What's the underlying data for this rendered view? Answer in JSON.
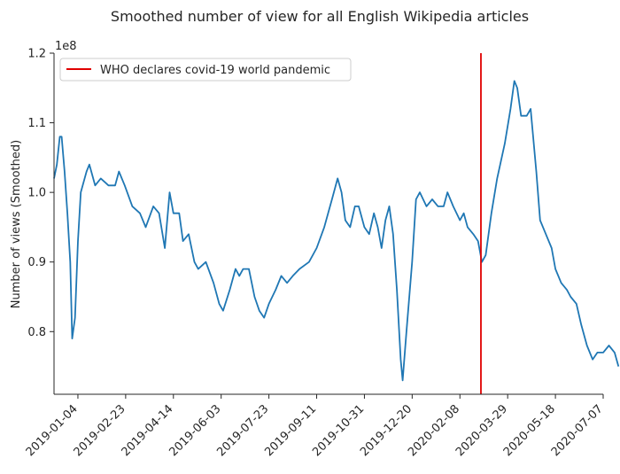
{
  "chart_data": {
    "type": "line",
    "title": "Smoothed number of view for all English Wikipedia articles",
    "xlabel": "",
    "ylabel": "Number of views (Smoothed)",
    "y_offset_label": "1e8",
    "y_ticks": [
      0.8,
      0.9,
      1.0,
      1.1,
      1.2
    ],
    "ylim": [
      0.71,
      1.2
    ],
    "x_ticks": [
      "2019-01-04",
      "2019-02-23",
      "2019-04-14",
      "2019-06-03",
      "2019-07-23",
      "2019-09-11",
      "2019-10-31",
      "2019-12-20",
      "2020-02-08",
      "2020-03-29",
      "2020-05-18",
      "2020-07-07"
    ],
    "xlim": [
      "2018-12-10",
      "2020-07-07"
    ],
    "grid": false,
    "legend_position": "top-left",
    "series": [
      {
        "name": "",
        "color": "#1f77b4",
        "points": [
          [
            "2018-12-10",
            1.02
          ],
          [
            "2018-12-13",
            1.04
          ],
          [
            "2018-12-16",
            1.08
          ],
          [
            "2018-12-18",
            1.08
          ],
          [
            "2018-12-21",
            1.03
          ],
          [
            "2018-12-24",
            0.97
          ],
          [
            "2018-12-27",
            0.9
          ],
          [
            "2018-12-29",
            0.79
          ],
          [
            "2019-01-01",
            0.82
          ],
          [
            "2019-01-04",
            0.93
          ],
          [
            "2019-01-07",
            1.0
          ],
          [
            "2019-01-13",
            1.03
          ],
          [
            "2019-01-16",
            1.04
          ],
          [
            "2019-01-22",
            1.01
          ],
          [
            "2019-01-28",
            1.02
          ],
          [
            "2019-02-05",
            1.01
          ],
          [
            "2019-02-12",
            1.01
          ],
          [
            "2019-02-16",
            1.03
          ],
          [
            "2019-02-22",
            1.01
          ],
          [
            "2019-03-02",
            0.98
          ],
          [
            "2019-03-10",
            0.97
          ],
          [
            "2019-03-16",
            0.95
          ],
          [
            "2019-03-24",
            0.98
          ],
          [
            "2019-03-30",
            0.97
          ],
          [
            "2019-04-05",
            0.92
          ],
          [
            "2019-04-10",
            1.0
          ],
          [
            "2019-04-14",
            0.97
          ],
          [
            "2019-04-20",
            0.97
          ],
          [
            "2019-04-24",
            0.93
          ],
          [
            "2019-04-30",
            0.94
          ],
          [
            "2019-05-06",
            0.9
          ],
          [
            "2019-05-10",
            0.89
          ],
          [
            "2019-05-18",
            0.9
          ],
          [
            "2019-05-26",
            0.87
          ],
          [
            "2019-06-01",
            0.84
          ],
          [
            "2019-06-05",
            0.83
          ],
          [
            "2019-06-12",
            0.86
          ],
          [
            "2019-06-18",
            0.89
          ],
          [
            "2019-06-22",
            0.88
          ],
          [
            "2019-06-26",
            0.89
          ],
          [
            "2019-07-02",
            0.89
          ],
          [
            "2019-07-08",
            0.85
          ],
          [
            "2019-07-13",
            0.83
          ],
          [
            "2019-07-18",
            0.82
          ],
          [
            "2019-07-23",
            0.84
          ],
          [
            "2019-07-30",
            0.86
          ],
          [
            "2019-08-05",
            0.88
          ],
          [
            "2019-08-11",
            0.87
          ],
          [
            "2019-08-17",
            0.88
          ],
          [
            "2019-08-24",
            0.89
          ],
          [
            "2019-09-03",
            0.9
          ],
          [
            "2019-09-11",
            0.92
          ],
          [
            "2019-09-19",
            0.95
          ],
          [
            "2019-09-27",
            0.99
          ],
          [
            "2019-10-03",
            1.02
          ],
          [
            "2019-10-07",
            1.0
          ],
          [
            "2019-10-11",
            0.96
          ],
          [
            "2019-10-16",
            0.95
          ],
          [
            "2019-10-21",
            0.98
          ],
          [
            "2019-10-25",
            0.98
          ],
          [
            "2019-10-31",
            0.95
          ],
          [
            "2019-11-05",
            0.94
          ],
          [
            "2019-11-10",
            0.97
          ],
          [
            "2019-11-14",
            0.95
          ],
          [
            "2019-11-18",
            0.92
          ],
          [
            "2019-11-22",
            0.96
          ],
          [
            "2019-11-26",
            0.98
          ],
          [
            "2019-11-30",
            0.94
          ],
          [
            "2019-12-04",
            0.86
          ],
          [
            "2019-12-08",
            0.76
          ],
          [
            "2019-12-10",
            0.73
          ],
          [
            "2019-12-14",
            0.8
          ],
          [
            "2019-12-20",
            0.9
          ],
          [
            "2019-12-24",
            0.99
          ],
          [
            "2019-12-28",
            1.0
          ],
          [
            "2020-01-04",
            0.98
          ],
          [
            "2020-01-10",
            0.99
          ],
          [
            "2020-01-16",
            0.98
          ],
          [
            "2020-01-22",
            0.98
          ],
          [
            "2020-01-26",
            1.0
          ],
          [
            "2020-02-01",
            0.98
          ],
          [
            "2020-02-08",
            0.96
          ],
          [
            "2020-02-12",
            0.97
          ],
          [
            "2020-02-16",
            0.95
          ],
          [
            "2020-02-22",
            0.94
          ],
          [
            "2020-02-27",
            0.93
          ],
          [
            "2020-03-02",
            0.9
          ],
          [
            "2020-03-06",
            0.91
          ],
          [
            "2020-03-12",
            0.97
          ],
          [
            "2020-03-18",
            1.02
          ],
          [
            "2020-03-26",
            1.07
          ],
          [
            "2020-04-01",
            1.12
          ],
          [
            "2020-04-05",
            1.16
          ],
          [
            "2020-04-08",
            1.15
          ],
          [
            "2020-04-12",
            1.11
          ],
          [
            "2020-04-18",
            1.11
          ],
          [
            "2020-04-22",
            1.12
          ],
          [
            "2020-04-28",
            1.03
          ],
          [
            "2020-05-02",
            0.96
          ],
          [
            "2020-05-08",
            0.94
          ],
          [
            "2020-05-14",
            0.92
          ],
          [
            "2020-05-18",
            0.89
          ],
          [
            "2020-05-24",
            0.87
          ],
          [
            "2020-05-30",
            0.86
          ],
          [
            "2020-06-03",
            0.85
          ],
          [
            "2020-06-09",
            0.84
          ],
          [
            "2020-06-14",
            0.81
          ],
          [
            "2020-06-20",
            0.78
          ],
          [
            "2020-06-26",
            0.76
          ],
          [
            "2020-07-01",
            0.77
          ],
          [
            "2020-07-07",
            0.77
          ],
          [
            "2020-07-13",
            0.78
          ],
          [
            "2020-07-19",
            0.77
          ],
          [
            "2020-07-23",
            0.75
          ]
        ]
      }
    ],
    "annotations": [
      {
        "type": "vertical-line",
        "x": "2020-03-01",
        "color": "#e00000",
        "label": "WHO declares covid-19 world pandemic"
      }
    ]
  }
}
